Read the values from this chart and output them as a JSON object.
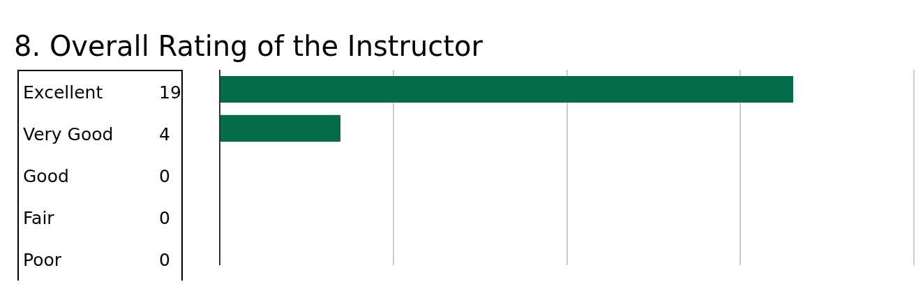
{
  "chart_data": {
    "type": "bar",
    "orientation": "horizontal",
    "title": "8. Overall Rating of the Instructor",
    "categories": [
      "Excellent",
      "Very Good",
      "Good",
      "Fair",
      "Poor"
    ],
    "values": [
      19,
      4,
      0,
      0,
      0
    ],
    "color": "#036a4a",
    "xlim": [
      0,
      23
    ],
    "xticks": [
      {
        "value": 0,
        "label": null
      },
      {
        "value": 5.75,
        "label": null
      },
      {
        "value": 11.5,
        "label": null
      },
      {
        "value": 17.25,
        "label": null
      },
      {
        "value": 23,
        "label": null
      }
    ],
    "grid": "x",
    "data_labels": true,
    "legend": false
  }
}
